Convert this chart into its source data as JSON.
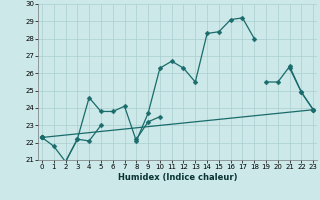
{
  "xlabel": "Humidex (Indice chaleur)",
  "x_values": [
    0,
    1,
    2,
    3,
    4,
    5,
    6,
    7,
    8,
    9,
    10,
    11,
    12,
    13,
    14,
    15,
    16,
    17,
    18,
    19,
    20,
    21,
    22,
    23
  ],
  "line1": [
    22.3,
    21.8,
    20.9,
    22.2,
    24.6,
    23.8,
    23.8,
    24.1,
    22.1,
    23.7,
    26.3,
    26.7,
    26.3,
    25.5,
    28.3,
    28.4,
    29.1,
    29.2,
    28.0,
    null,
    null,
    null,
    null,
    null
  ],
  "line2": [
    22.3,
    null,
    20.9,
    22.2,
    22.1,
    23.0,
    null,
    null,
    22.2,
    23.2,
    23.5,
    null,
    null,
    null,
    null,
    null,
    null,
    null,
    null,
    null,
    null,
    null,
    null,
    null
  ],
  "line3": [
    22.3,
    null,
    null,
    null,
    null,
    null,
    null,
    null,
    null,
    null,
    null,
    null,
    null,
    null,
    null,
    null,
    null,
    null,
    null,
    null,
    null,
    26.3,
    24.9,
    23.9
  ],
  "line4": [
    22.3,
    null,
    null,
    null,
    null,
    null,
    null,
    null,
    null,
    null,
    null,
    null,
    null,
    null,
    null,
    null,
    null,
    null,
    null,
    25.5,
    25.5,
    26.4,
    24.9,
    23.9
  ],
  "line5_x": [
    0,
    23
  ],
  "line5_y": [
    22.3,
    23.9
  ],
  "line6_x": [
    0,
    23
  ],
  "line6_y": [
    22.3,
    23.9
  ],
  "bg_color": "#cce8e8",
  "grid_color": "#aacfcf",
  "line_color": "#1a6b6b",
  "marker_size": 2.5,
  "ylim": [
    21,
    30
  ],
  "xlim": [
    -0.3,
    23.3
  ]
}
